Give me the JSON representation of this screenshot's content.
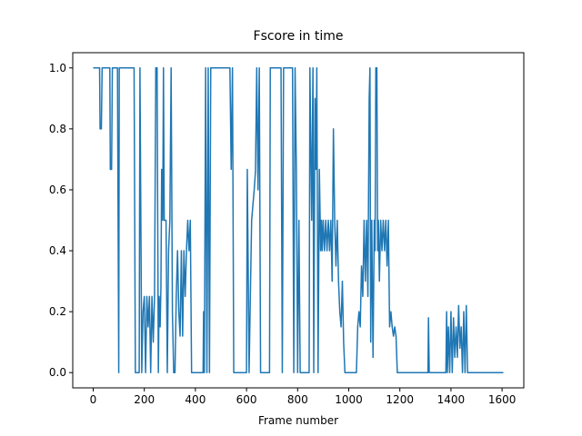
{
  "chart_data": {
    "type": "line",
    "title": "Fscore in time",
    "x_label": "Frame number",
    "x": [
      0,
      25,
      27,
      32,
      35,
      65,
      67,
      72,
      75,
      95,
      100,
      102,
      160,
      165,
      180,
      183,
      190,
      195,
      200,
      205,
      210,
      215,
      220,
      225,
      230,
      235,
      240,
      245,
      250,
      255,
      258,
      262,
      265,
      268,
      272,
      275,
      278,
      285,
      290,
      295,
      300,
      305,
      310,
      315,
      320,
      325,
      330,
      335,
      340,
      345,
      350,
      355,
      360,
      365,
      370,
      375,
      380,
      385,
      430,
      432,
      435,
      440,
      445,
      450,
      455,
      460,
      535,
      540,
      545,
      550,
      600,
      603,
      607,
      610,
      620,
      625,
      630,
      635,
      640,
      645,
      650,
      655,
      690,
      693,
      735,
      740,
      745,
      780,
      785,
      790,
      795,
      800,
      805,
      810,
      845,
      848,
      855,
      860,
      863,
      868,
      872,
      875,
      880,
      885,
      890,
      893,
      896,
      900,
      905,
      910,
      915,
      920,
      925,
      930,
      935,
      940,
      945,
      950,
      955,
      960,
      965,
      970,
      975,
      980,
      985,
      1030,
      1035,
      1040,
      1045,
      1050,
      1055,
      1060,
      1065,
      1070,
      1075,
      1080,
      1083,
      1086,
      1090,
      1095,
      1100,
      1103,
      1106,
      1110,
      1113,
      1116,
      1120,
      1125,
      1130,
      1135,
      1140,
      1145,
      1150,
      1155,
      1160,
      1165,
      1170,
      1175,
      1180,
      1185,
      1190,
      1310,
      1312,
      1315,
      1380,
      1383,
      1386,
      1390,
      1395,
      1400,
      1405,
      1410,
      1415,
      1420,
      1425,
      1430,
      1435,
      1440,
      1445,
      1450,
      1455,
      1460,
      1465,
      1605
    ],
    "series": [
      {
        "name": "Fscore",
        "color": "#1f77b4",
        "values": [
          1.0,
          1.0,
          0.8,
          0.8,
          1.0,
          1.0,
          0.667,
          0.667,
          1.0,
          1.0,
          0,
          1.0,
          1.0,
          0,
          0,
          1.0,
          0,
          0.2,
          0.25,
          0,
          0.25,
          0.15,
          0.25,
          0,
          0.25,
          0.1,
          0.25,
          1.0,
          1.0,
          0,
          0.25,
          0.15,
          0.28,
          0.667,
          0.5,
          1.0,
          0.5,
          0.5,
          0,
          0.4,
          0.5,
          1.0,
          0.2,
          0,
          0,
          0.25,
          0.4,
          0.2,
          0.12,
          0.4,
          0.12,
          0.4,
          0.25,
          0.4,
          0.5,
          0.4,
          0.5,
          0,
          0,
          0.2,
          0,
          1.0,
          0,
          1.0,
          0,
          1.0,
          1.0,
          0.667,
          1.0,
          0,
          0,
          0.667,
          0.3,
          0,
          0.5,
          0.55,
          0.6,
          0.66,
          1.0,
          0.6,
          1.0,
          0,
          0,
          1.0,
          1.0,
          0,
          1.0,
          1.0,
          0,
          1.0,
          0.667,
          0,
          0.5,
          0,
          0,
          1.0,
          0.5,
          1.0,
          0,
          0.9,
          0.667,
          1.0,
          0,
          0.667,
          0.4,
          0.5,
          0.4,
          0.5,
          0.4,
          0.5,
          0.4,
          0.5,
          0.4,
          0.5,
          0.3,
          0.8,
          0.5,
          0.35,
          0.5,
          0.3,
          0.2,
          0.15,
          0.3,
          0.1,
          0,
          0,
          0.15,
          0.2,
          0.15,
          0.35,
          0.25,
          0.5,
          0.3,
          0.5,
          0.25,
          0.9,
          1.0,
          0.1,
          0.5,
          0.05,
          0.5,
          0.4,
          1.0,
          1.0,
          0.4,
          0.5,
          0.3,
          0.5,
          0.4,
          0.5,
          0.4,
          0.5,
          0.35,
          0.5,
          0.15,
          0.2,
          0.15,
          0.12,
          0.15,
          0.12,
          0,
          0,
          0.18,
          0,
          0,
          0.2,
          0,
          0.15,
          0,
          0.2,
          0,
          0.18,
          0.05,
          0.15,
          0.05,
          0.22,
          0.08,
          0.15,
          0,
          0.2,
          0,
          0.22,
          0,
          0
        ]
      }
    ],
    "xlim": [
      -80,
      1685
    ],
    "ylim": [
      -0.05,
      1.05
    ],
    "xticks": [
      0,
      200,
      400,
      600,
      800,
      1000,
      1200,
      1400,
      1600
    ],
    "yticks": [
      {
        "value": 0,
        "label": "0.0"
      },
      {
        "value": 0.2,
        "label": "0.2"
      },
      {
        "value": 0.4,
        "label": "0.4"
      },
      {
        "value": 0.6,
        "label": "0.6"
      },
      {
        "value": 0.8,
        "label": "0.8"
      },
      {
        "value": 1.0,
        "label": "1.0"
      }
    ],
    "grid": false
  }
}
